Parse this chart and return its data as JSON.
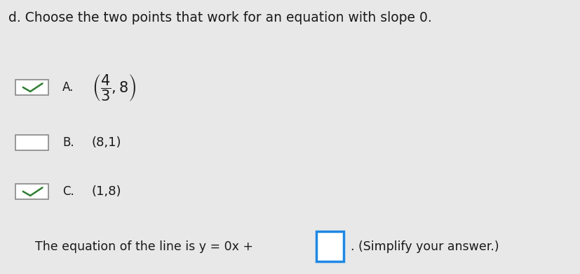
{
  "title": "d. Choose the two points that work for an equation with slope 0.",
  "title_fontsize": 13.5,
  "bg_color": "#e8e8e8",
  "options": [
    {
      "label": "A.",
      "mathtext": "$\\left(\\dfrac{4}{3},8\\right)$",
      "checked": true,
      "check_color": "#2e7d32"
    },
    {
      "label": "B.",
      "text": "(8,1)",
      "checked": false
    },
    {
      "label": "C.",
      "text": "(1,8)",
      "checked": true,
      "check_color": "#2e7d32"
    }
  ],
  "equation_text": "The equation of the line is y = 0x + ",
  "equation_suffix": ". (Simplify your answer.)",
  "box_color": "#1e88e5",
  "text_color": "#1a1a1a",
  "label_fontsize": 12,
  "option_fontsize": 13,
  "eq_fontsize": 12.5
}
